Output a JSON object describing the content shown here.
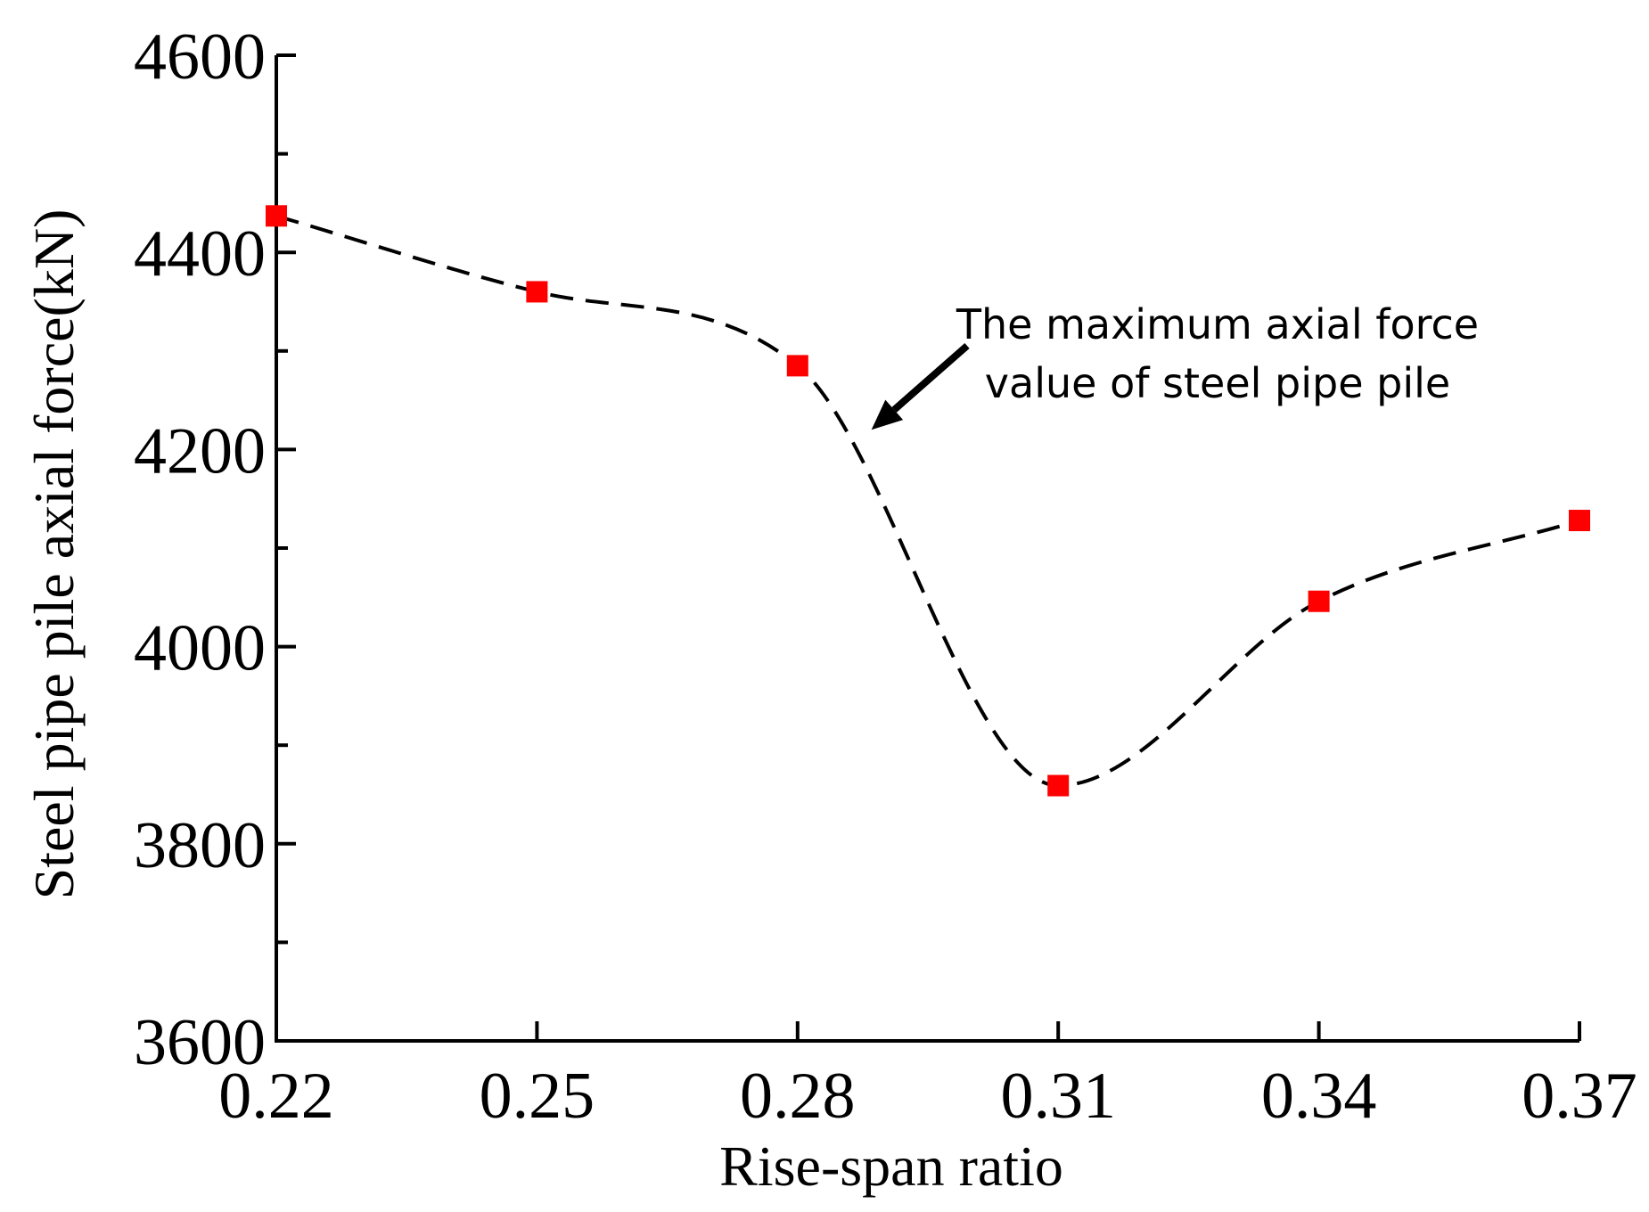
{
  "chart_data": {
    "type": "line",
    "title": "",
    "xlabel": "Rise-span ratio",
    "ylabel": "Steel pipe pile axial force(kN)",
    "xlim": [
      0.22,
      0.37
    ],
    "ylim": [
      3600,
      4600
    ],
    "x_ticks": [
      "0.22",
      "0.25",
      "0.28",
      "0.31",
      "0.34",
      "0.37"
    ],
    "y_ticks": [
      "3600",
      "3800",
      "4000",
      "4200",
      "4400",
      "4600"
    ],
    "grid": false,
    "series": [
      {
        "name": "Steel pipe pile axial force",
        "x": [
          0.22,
          0.25,
          0.28,
          0.31,
          0.34,
          0.37
        ],
        "values": [
          4437,
          4360,
          4285,
          3859,
          4046,
          4128
        ],
        "line_style": "dashed",
        "line_color": "#000000",
        "marker": "square",
        "marker_color": "#ff0000"
      }
    ],
    "annotations": [
      {
        "line1": "The maximum axial force",
        "line2": "value of steel pipe pile",
        "points_to_x": 0.2885,
        "points_to_y": 4220
      }
    ]
  }
}
